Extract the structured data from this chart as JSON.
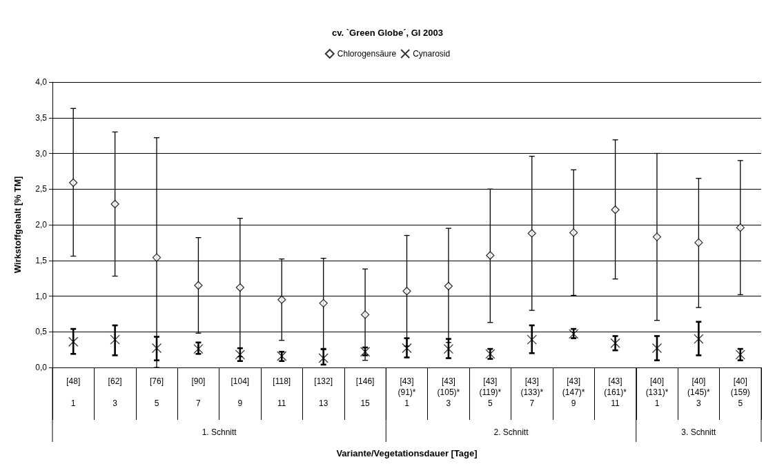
{
  "chart_data": {
    "type": "scatter",
    "title": "cv. `Green Globe´, GI 2003",
    "xlabel": "Variante/Vegetationsdauer [Tage]",
    "ylabel": "Wirkstoffgehalt [% TM]",
    "categories": [
      "[48]\n\n1",
      "[62]\n\n3",
      "[76]\n\n5",
      "[90]\n\n7",
      "[104]\n\n9",
      "[118]\n\n11",
      "[132]\n\n13",
      "[146]\n\n15",
      "[43]\n(91)*\n1",
      "[43]\n(105)*\n3",
      "[43]\n(119)*\n5",
      "[43]\n(133)*\n7",
      "[43]\n(147)*\n9",
      "[43]\n(161)*\n11",
      "[40]\n(131)*\n1",
      "[40]\n(145)*\n3",
      "[40]\n(159)\n5"
    ],
    "annotations": [
      "1. Schnitt",
      "2. Schnitt",
      "3. Schnitt"
    ],
    "series": [
      {
        "name": "Chlorogensäure",
        "color": "#000000",
        "marker": "diamond",
        "values": [
          2.59,
          2.29,
          1.54,
          1.15,
          1.12,
          0.95,
          0.9,
          0.74,
          1.07,
          1.14,
          1.57,
          1.88,
          1.89,
          2.21,
          1.83,
          1.75,
          1.96
        ],
        "errors": [
          [
            1.56,
            3.63
          ],
          [
            1.28,
            3.3
          ],
          [
            0,
            3.22
          ],
          [
            0.48,
            1.82
          ],
          [
            0.15,
            2.09
          ],
          [
            0.38,
            1.52
          ],
          [
            0.25,
            1.53
          ],
          [
            0.1,
            1.38
          ],
          [
            0.3,
            1.85
          ],
          [
            0.35,
            1.95
          ],
          [
            0.63,
            2.5
          ],
          [
            0.8,
            2.96
          ],
          [
            1.01,
            2.77
          ],
          [
            1.24,
            3.19
          ],
          [
            0.66,
            3.0
          ],
          [
            0.84,
            2.65
          ],
          [
            1.02,
            2.9
          ]
        ]
      },
      {
        "name": "Cynarosid",
        "color": "#000000",
        "marker": "cross",
        "values": [
          0.36,
          0.39,
          0.27,
          0.26,
          0.18,
          0.16,
          0.13,
          0.22,
          0.27,
          0.26,
          0.19,
          0.39,
          0.47,
          0.34,
          0.27,
          0.4,
          0.18
        ],
        "errors": [
          [
            0.19,
            0.54
          ],
          [
            0.17,
            0.59
          ],
          [
            0.1,
            0.43
          ],
          [
            0.19,
            0.35
          ],
          [
            0.09,
            0.27
          ],
          [
            0.09,
            0.22
          ],
          [
            0.04,
            0.26
          ],
          [
            0.17,
            0.28
          ],
          [
            0.14,
            0.41
          ],
          [
            0.13,
            0.4
          ],
          [
            0.12,
            0.26
          ],
          [
            0.2,
            0.59
          ],
          [
            0.41,
            0.54
          ],
          [
            0.24,
            0.44
          ],
          [
            0.1,
            0.44
          ],
          [
            0.17,
            0.64
          ],
          [
            0.1,
            0.26
          ]
        ]
      }
    ],
    "ylim": [
      0,
      4
    ],
    "yticks": [
      {
        "value": 0,
        "label": "0,0"
      },
      {
        "value": 0.5,
        "label": "0,5"
      },
      {
        "value": 1,
        "label": "1,0"
      },
      {
        "value": 1.5,
        "label": "1,5"
      },
      {
        "value": 2,
        "label": "2,0"
      },
      {
        "value": 2.5,
        "label": "2,5"
      },
      {
        "value": 3,
        "label": "3,0"
      },
      {
        "value": 3.5,
        "label": "3,5"
      },
      {
        "value": 4,
        "label": "4,0"
      }
    ],
    "grid": "y",
    "legend": "top"
  }
}
